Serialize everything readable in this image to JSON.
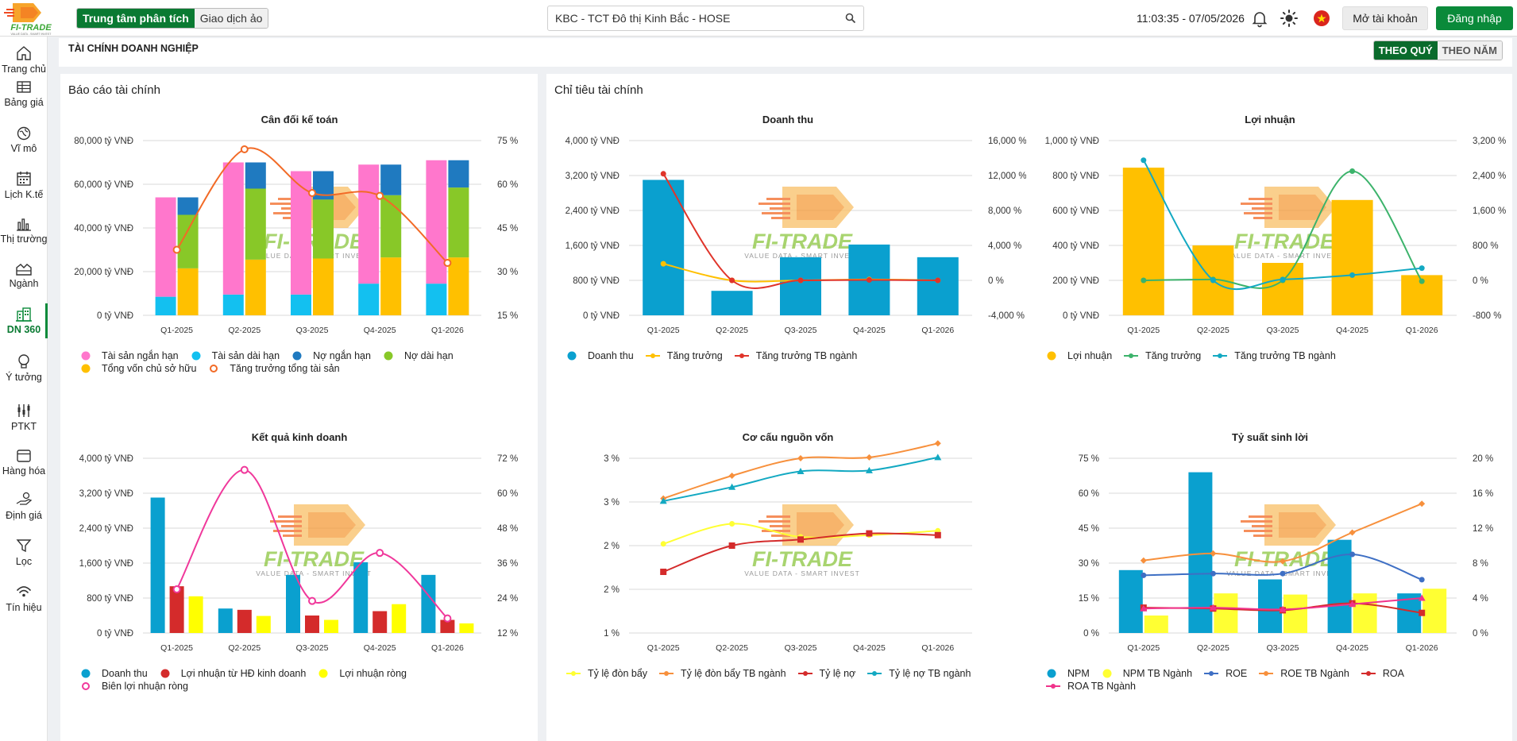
{
  "topbar": {
    "logo_text": "FI-TRADE",
    "logo_tagline": "VALUE DATA - SMART INVEST",
    "tabs": [
      "Trung tâm phân tích",
      "Giao dịch ảo"
    ],
    "search_value": "KBC - TCT Đô thị Kinh Bắc - HOSE",
    "clock": "11:03:35 - 07/05/2026",
    "open_account": "Mở tài khoản",
    "login": "Đăng nhập",
    "icons": [
      "bell-icon",
      "sun-icon",
      "vietnam-flag-icon",
      "search-icon"
    ]
  },
  "sidebar": {
    "items": [
      {
        "label": "Trang chủ",
        "icon": "home-icon"
      },
      {
        "label": "Bảng giá",
        "icon": "price-board-icon"
      },
      {
        "label": "Vĩ mô",
        "icon": "macro-icon"
      },
      {
        "label": "Lịch K.tế",
        "icon": "calendar-icon"
      },
      {
        "label": "Thị trường",
        "icon": "market-icon"
      },
      {
        "label": "Ngành",
        "icon": "industry-icon"
      },
      {
        "label": "DN 360",
        "icon": "company-icon"
      },
      {
        "label": "Ý tưởng",
        "icon": "idea-icon"
      },
      {
        "label": "PTKT",
        "icon": "technical-icon"
      },
      {
        "label": "Hàng hóa",
        "icon": "commodity-icon"
      },
      {
        "label": "Định giá",
        "icon": "valuation-icon"
      },
      {
        "label": "Lọc",
        "icon": "filter-icon"
      },
      {
        "label": "Tín hiệu",
        "icon": "signal-icon"
      }
    ]
  },
  "page": {
    "title": "TÀI CHÍNH DOANH NGHIỆP",
    "toggle": [
      "THEO QUÝ",
      "THEO NĂM"
    ],
    "left_card_title": "Báo cáo tài chính",
    "right_card_title": "Chỉ tiêu tài chính",
    "colors": {
      "accent": "#0a8a3a",
      "blue": "#0aa0cf",
      "yellow": "#ffc000",
      "pink": "#ff77cc",
      "green": "#88c828",
      "darkblue": "#1f7ac0",
      "cyan": "#13c0f0",
      "orange": "#f26a26",
      "red": "#d42b2b",
      "lime": "#ffff00",
      "teal": "#13a9c2"
    }
  },
  "chart_data": [
    {
      "id": "can-doi-ke-toan",
      "type": "bar",
      "title": "Cân đối kế toán",
      "categories": [
        "Q1-2025",
        "Q2-2025",
        "Q3-2025",
        "Q4-2025",
        "Q1-2026"
      ],
      "y_left": {
        "min": 0,
        "max": 80000,
        "ticks": [
          "0 tỷ VNĐ",
          "20,000 tỷ VNĐ",
          "40,000 tỷ VNĐ",
          "60,000 tỷ VNĐ",
          "80,000 tỷ VNĐ"
        ]
      },
      "y_right": {
        "min": 15,
        "max": 75,
        "ticks": [
          "15 %",
          "30 %",
          "45 %",
          "60 %",
          "75 %"
        ]
      },
      "stack_a": [
        {
          "name": "Tài sản dài hạn",
          "color": "#13c0f0",
          "values": [
            8500,
            9500,
            9500,
            14500,
            14500
          ]
        },
        {
          "name": "Tài sản ngắn hạn",
          "color": "#ff77cc",
          "values": [
            45500,
            60500,
            56500,
            54500,
            56500
          ]
        }
      ],
      "stack_b": [
        {
          "name": "Tổng vốn chủ sở hữu",
          "color": "#ffc000",
          "values": [
            21500,
            25500,
            26000,
            26500,
            26500
          ]
        },
        {
          "name": "Nợ dài hạn",
          "color": "#88c828",
          "values": [
            24500,
            32500,
            27000,
            28500,
            32000
          ]
        },
        {
          "name": "Nợ ngắn hạn",
          "color": "#1f7ac0",
          "values": [
            8000,
            12000,
            13000,
            14000,
            12500
          ]
        }
      ],
      "lines": [
        {
          "name": "Tăng trưởng tổng tài sản",
          "color": "#f26a26",
          "axis": "right",
          "hollow": true,
          "values": [
            37.5,
            72,
            57,
            56,
            33
          ]
        }
      ],
      "legend": [
        {
          "name": "Tài sản ngắn hạn",
          "color": "#ff77cc",
          "kind": "dot"
        },
        {
          "name": "Tài sản dài hạn",
          "color": "#13c0f0",
          "kind": "dot"
        },
        {
          "name": "Nợ ngắn hạn",
          "color": "#1f7ac0",
          "kind": "dot"
        },
        {
          "name": "Nợ dài hạn",
          "color": "#88c828",
          "kind": "dot"
        },
        {
          "name": "Tổng vốn chủ sở hữu",
          "color": "#ffc000",
          "kind": "dot"
        },
        {
          "name": "Tăng trưởng tổng tài sản",
          "color": "#f26a26",
          "kind": "ring"
        }
      ]
    },
    {
      "id": "doanh-thu",
      "type": "bar",
      "title": "Doanh thu",
      "categories": [
        "Q1-2025",
        "Q2-2025",
        "Q3-2025",
        "Q4-2025",
        "Q1-2026"
      ],
      "y_left": {
        "min": 0,
        "max": 4000,
        "ticks": [
          "0 tỷ VNĐ",
          "800 tỷ VNĐ",
          "1,600 tỷ VNĐ",
          "2,400 tỷ VNĐ",
          "3,200 tỷ VNĐ",
          "4,000 tỷ VNĐ"
        ]
      },
      "y_right": {
        "min": -4000,
        "max": 16000,
        "ticks": [
          "-4,000 %",
          "0 %",
          "4,000 %",
          "8,000 %",
          "12,000 %",
          "16,000 %"
        ]
      },
      "bars": [
        {
          "name": "Doanh thu",
          "color": "#0aa0cf",
          "values": [
            3100,
            560,
            1330,
            1620,
            1330
          ]
        }
      ],
      "lines": [
        {
          "name": "Tăng trưởng",
          "color": "#ffc000",
          "axis": "right",
          "values": [
            1900,
            0,
            0,
            100,
            0
          ]
        },
        {
          "name": "Tăng trưởng TB ngành",
          "color": "#e0342a",
          "axis": "right",
          "values": [
            12200,
            0,
            0,
            50,
            0
          ]
        }
      ],
      "legend": [
        {
          "name": "Doanh thu",
          "color": "#0aa0cf",
          "kind": "dot"
        },
        {
          "name": "Tăng trưởng",
          "color": "#ffc000",
          "kind": "line"
        },
        {
          "name": "Tăng trưởng TB ngành",
          "color": "#e0342a",
          "kind": "line"
        }
      ]
    },
    {
      "id": "loi-nhuan",
      "type": "bar",
      "title": "Lợi nhuận",
      "categories": [
        "Q1-2025",
        "Q2-2025",
        "Q3-2025",
        "Q4-2025",
        "Q1-2026"
      ],
      "y_left": {
        "min": 0,
        "max": 1000,
        "ticks": [
          "0 tỷ VNĐ",
          "200 tỷ VNĐ",
          "400 tỷ VNĐ",
          "600 tỷ VNĐ",
          "800 tỷ VNĐ",
          "1,000 tỷ VNĐ"
        ]
      },
      "y_right": {
        "min": -800,
        "max": 3200,
        "ticks": [
          "-800 %",
          "0 %",
          "800 %",
          "1,600 %",
          "2,400 %",
          "3,200 %"
        ]
      },
      "bars": [
        {
          "name": "Lợi nhuận",
          "color": "#ffc000",
          "values": [
            845,
            400,
            300,
            660,
            230
          ]
        }
      ],
      "lines": [
        {
          "name": "Tăng trưởng",
          "color": "#3cb36b",
          "axis": "right",
          "values": [
            0,
            20,
            0,
            2500,
            -20
          ]
        },
        {
          "name": "Tăng trưởng TB ngành",
          "color": "#13a9c2",
          "axis": "right",
          "values": [
            2750,
            0,
            20,
            120,
            280
          ]
        }
      ],
      "legend": [
        {
          "name": "Lợi nhuận",
          "color": "#ffc000",
          "kind": "dot"
        },
        {
          "name": "Tăng trưởng",
          "color": "#3cb36b",
          "kind": "line"
        },
        {
          "name": "Tăng trưởng TB ngành",
          "color": "#13a9c2",
          "kind": "line"
        }
      ]
    },
    {
      "id": "ket-qua-kinh-doanh",
      "type": "bar",
      "title": "Kết quả kinh doanh",
      "categories": [
        "Q1-2025",
        "Q2-2025",
        "Q3-2025",
        "Q4-2025",
        "Q1-2026"
      ],
      "y_left": {
        "min": 0,
        "max": 4000,
        "ticks": [
          "0 tỷ VNĐ",
          "800 tỷ VNĐ",
          "1,600 tỷ VNĐ",
          "2,400 tỷ VNĐ",
          "3,200 tỷ VNĐ",
          "4,000 tỷ VNĐ"
        ]
      },
      "y_right": {
        "min": 12,
        "max": 72,
        "ticks": [
          "12 %",
          "24 %",
          "36 %",
          "48 %",
          "60 %",
          "72 %"
        ]
      },
      "bars": [
        {
          "name": "Doanh thu",
          "color": "#0aa0cf",
          "values": [
            3100,
            560,
            1330,
            1620,
            1330
          ]
        },
        {
          "name": "Lợi nhuận từ HĐ kinh doanh",
          "color": "#d42b2b",
          "values": [
            1070,
            530,
            400,
            500,
            300
          ]
        },
        {
          "name": "Lợi nhuận ròng",
          "color": "#ffff00",
          "values": [
            840,
            390,
            300,
            660,
            220
          ]
        }
      ],
      "lines": [
        {
          "name": "Biên lợi nhuận ròng",
          "color": "#f0389b",
          "axis": "right",
          "hollow": true,
          "values": [
            27,
            68,
            23,
            39.5,
            17
          ]
        }
      ],
      "legend": [
        {
          "name": "Doanh thu",
          "color": "#0aa0cf",
          "kind": "dot"
        },
        {
          "name": "Lợi nhuận từ HĐ kinh doanh",
          "color": "#d42b2b",
          "kind": "dot"
        },
        {
          "name": "Lợi nhuận ròng",
          "color": "#ffff00",
          "kind": "dot"
        },
        {
          "name": "Biên lợi nhuận ròng",
          "color": "#f0389b",
          "kind": "ring"
        }
      ]
    },
    {
      "id": "co-cau-nguon-von",
      "type": "line",
      "title": "Cơ cấu nguồn vốn",
      "categories": [
        "Q1-2025",
        "Q2-2025",
        "Q3-2025",
        "Q4-2025",
        "Q1-2026"
      ],
      "y_left": {
        "min": 1,
        "max": 3,
        "ticks": [
          "1 %",
          "2 %",
          "2 %",
          "3 %",
          "3 %"
        ]
      },
      "lines": [
        {
          "name": "Tỷ lệ đòn bẩy",
          "color": "#ffff33",
          "axis": "left",
          "marker": "dot",
          "values": [
            2.02,
            2.25,
            2.1,
            2.12,
            2.17
          ]
        },
        {
          "name": "Tỷ lệ đòn bẩy TB ngành",
          "color": "#f7903c",
          "axis": "left",
          "marker": "diamond",
          "values": [
            2.54,
            2.8,
            3.0,
            3.01,
            3.17
          ]
        },
        {
          "name": "Tỷ lệ nợ",
          "color": "#d42b2b",
          "axis": "left",
          "marker": "square",
          "values": [
            1.7,
            2.0,
            2.07,
            2.14,
            2.12
          ]
        },
        {
          "name": "Tỷ lệ nợ TB ngành",
          "color": "#13a9c2",
          "axis": "left",
          "marker": "triangle",
          "values": [
            2.51,
            2.67,
            2.85,
            2.86,
            3.01
          ]
        }
      ],
      "legend": [
        {
          "name": "Tỷ lệ đòn bẩy",
          "color": "#ffff33",
          "kind": "line"
        },
        {
          "name": "Tỷ lệ đòn bẩy TB ngành",
          "color": "#f7903c",
          "kind": "line"
        },
        {
          "name": "Tỷ lệ nợ",
          "color": "#d42b2b",
          "kind": "line"
        },
        {
          "name": "Tỷ lệ nợ TB ngành",
          "color": "#13a9c2",
          "kind": "line"
        }
      ]
    },
    {
      "id": "ty-suat-sinh-loi",
      "type": "bar",
      "title": "Tỷ suất sinh lời",
      "categories": [
        "Q1-2025",
        "Q2-2025",
        "Q3-2025",
        "Q4-2025",
        "Q1-2026"
      ],
      "y_left": {
        "min": 0,
        "max": 75,
        "ticks": [
          "0 %",
          "15 %",
          "30 %",
          "45 %",
          "60 %",
          "75 %"
        ]
      },
      "y_right": {
        "min": 0,
        "max": 20,
        "ticks": [
          "0 %",
          "4 %",
          "8 %",
          "12 %",
          "16 %",
          "20 %"
        ]
      },
      "bars": [
        {
          "name": "NPM",
          "color": "#0aa0cf",
          "values": [
            27,
            69,
            23,
            40,
            17
          ]
        },
        {
          "name": "NPM TB Ngành",
          "color": "#ffff33",
          "values": [
            7.5,
            17,
            16.5,
            17,
            19
          ]
        }
      ],
      "lines": [
        {
          "name": "ROE",
          "color": "#3e6fc4",
          "axis": "right",
          "marker": "dot",
          "values": [
            6.6,
            6.8,
            6.8,
            9.0,
            6.1
          ]
        },
        {
          "name": "ROE TB Ngành",
          "color": "#f7903c",
          "axis": "right",
          "marker": "diamond",
          "values": [
            8.3,
            9.1,
            8.2,
            11.5,
            14.8
          ]
        },
        {
          "name": "ROA",
          "color": "#d42b2b",
          "axis": "right",
          "marker": "square",
          "values": [
            2.9,
            2.8,
            2.6,
            3.4,
            2.3
          ]
        },
        {
          "name": "ROA TB Ngành",
          "color": "#f0338b",
          "axis": "right",
          "marker": "triangle",
          "values": [
            2.8,
            2.9,
            2.7,
            3.3,
            4.0
          ]
        }
      ],
      "legend": [
        {
          "name": "NPM",
          "color": "#0aa0cf",
          "kind": "dot"
        },
        {
          "name": "NPM TB Ngành",
          "color": "#ffff33",
          "kind": "dot"
        },
        {
          "name": "ROE",
          "color": "#3e6fc4",
          "kind": "line"
        },
        {
          "name": "ROE TB Ngành",
          "color": "#f7903c",
          "kind": "line"
        },
        {
          "name": "ROA",
          "color": "#d42b2b",
          "kind": "line"
        },
        {
          "name": "ROA TB Ngành",
          "color": "#f0338b",
          "kind": "line"
        }
      ]
    }
  ]
}
